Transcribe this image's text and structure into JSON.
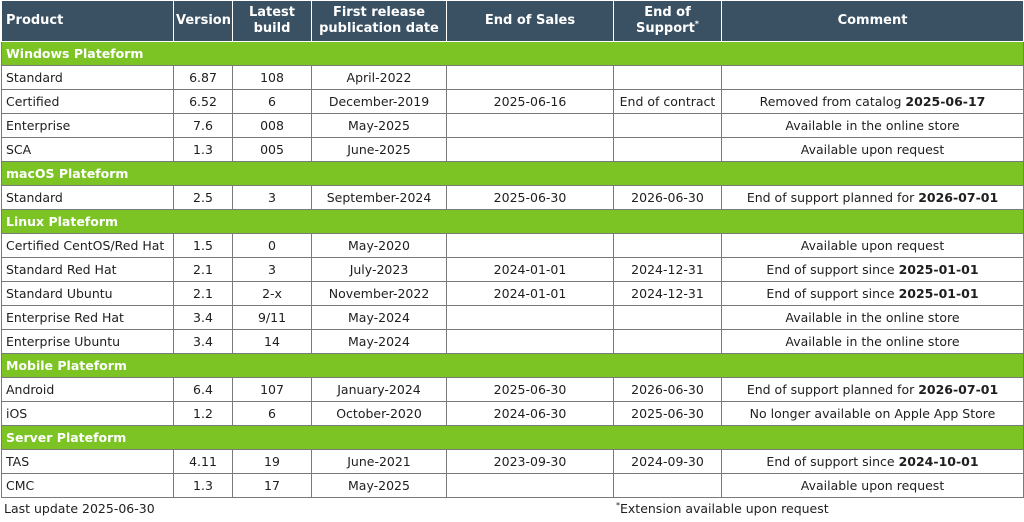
{
  "headers": {
    "product": "Product",
    "version": "Version",
    "latest_build": "Latest build",
    "first_release": "First release publication date",
    "end_of_sales": "End of Sales",
    "end_of_support": "End of Support",
    "end_of_support_mark": "*",
    "comment": "Comment"
  },
  "sections": [
    {
      "title": "Windows Plateform",
      "rows": [
        {
          "product": "Standard",
          "version": "6.87",
          "build": "108",
          "release": "April-2022",
          "end_sales": "",
          "end_support": "",
          "comment": "",
          "comment_bold": ""
        },
        {
          "product": "Certified",
          "version": "6.52",
          "build": "6",
          "release": "December-2019",
          "end_sales": "2025-06-16",
          "end_support": "End of contract",
          "comment": "Removed from catalog ",
          "comment_bold": "2025-06-17"
        },
        {
          "product": "Enterprise",
          "version": "7.6",
          "build": "008",
          "release": "May-2025",
          "end_sales": "",
          "end_support": "",
          "comment": "Available in the online store",
          "comment_bold": ""
        },
        {
          "product": "SCA",
          "version": "1.3",
          "build": "005",
          "release": "June-2025",
          "end_sales": "",
          "end_support": "",
          "comment": "Available upon request",
          "comment_bold": ""
        }
      ]
    },
    {
      "title": "macOS Plateform",
      "rows": [
        {
          "product": "Standard",
          "version": "2.5",
          "build": "3",
          "release": "September-2024",
          "end_sales": "2025-06-30",
          "end_support": "2026-06-30",
          "comment": "End of support planned for ",
          "comment_bold": "2026-07-01"
        }
      ]
    },
    {
      "title": "Linux Plateform",
      "rows": [
        {
          "product": "Certified CentOS/Red Hat",
          "version": "1.5",
          "build": "0",
          "release": "May-2020",
          "end_sales": "",
          "end_support": "",
          "comment": "Available upon request",
          "comment_bold": ""
        },
        {
          "product": "Standard Red Hat",
          "version": "2.1",
          "build": "3",
          "release": "July-2023",
          "end_sales": "2024-01-01",
          "end_support": "2024-12-31",
          "comment": "End of support since ",
          "comment_bold": "2025-01-01"
        },
        {
          "product": "Standard Ubuntu",
          "version": "2.1",
          "build": "2-x",
          "release": "November-2022",
          "end_sales": "2024-01-01",
          "end_support": "2024-12-31",
          "comment": "End of support since ",
          "comment_bold": "2025-01-01"
        },
        {
          "product": "Enterprise Red Hat",
          "version": "3.4",
          "build": "9/11",
          "release": "May-2024",
          "end_sales": "",
          "end_support": "",
          "comment": "Available in the online store",
          "comment_bold": ""
        },
        {
          "product": "Enterprise Ubuntu",
          "version": "3.4",
          "build": "14",
          "release": "May-2024",
          "end_sales": "",
          "end_support": "",
          "comment": "Available in the online store",
          "comment_bold": ""
        }
      ]
    },
    {
      "title": "Mobile Plateform",
      "rows": [
        {
          "product": "Android",
          "version": "6.4",
          "build": "107",
          "release": "January-2024",
          "end_sales": "2025-06-30",
          "end_support": "2026-06-30",
          "comment": "End of support planned for ",
          "comment_bold": "2026-07-01"
        },
        {
          "product": "iOS",
          "version": "1.2",
          "build": "6",
          "release": "October-2020",
          "end_sales": "2024-06-30",
          "end_support": "2025-06-30",
          "comment": "No longer available on Apple App Store",
          "comment_bold": ""
        }
      ]
    },
    {
      "title": "Server Plateform",
      "rows": [
        {
          "product": "TAS",
          "version": "4.11",
          "build": "19",
          "release": "June-2021",
          "end_sales": "2023-09-30",
          "end_support": "2024-09-30",
          "comment": "End of support since ",
          "comment_bold": "2024-10-01"
        },
        {
          "product": "CMC",
          "version": "1.3",
          "build": "17",
          "release": "May-2025",
          "end_sales": "",
          "end_support": "",
          "comment": "Available upon request",
          "comment_bold": ""
        }
      ]
    }
  ],
  "footer": {
    "last_update": "Last update 2025-06-30",
    "note_mark": "*",
    "note": "Extension available upon request"
  },
  "colors": {
    "header_bg": "#3a5163",
    "section_bg": "#7cc424"
  }
}
